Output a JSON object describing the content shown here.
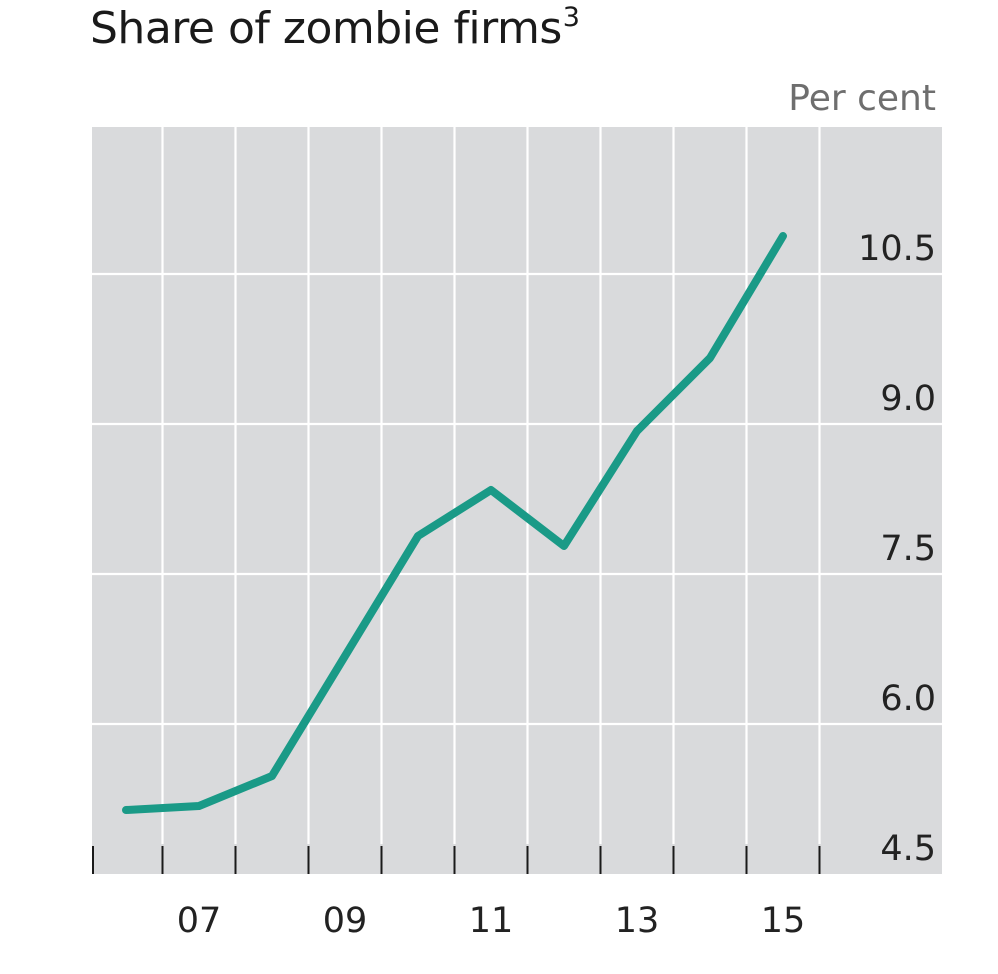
{
  "chart_data": {
    "type": "line",
    "title": "Share of zombie firms",
    "title_footnote": "3",
    "unit_label": "Per cent",
    "xlabel": "",
    "ylabel": "",
    "x_tick_labels": [
      "07",
      "09",
      "11",
      "13",
      "15"
    ],
    "y_tick_labels": [
      "4.5",
      "6.0",
      "7.5",
      "9.0",
      "10.5"
    ],
    "ylim": [
      4.5,
      12.0
    ],
    "xlim": [
      2005.5,
      2017.0
    ],
    "grid": true,
    "background": "#d9dadc",
    "series": [
      {
        "name": "Share of zombie firms",
        "color": "#1a9a87",
        "x": [
          2006.0,
          2007.0,
          2008.0,
          2009.0,
          2010.0,
          2011.0,
          2012.0,
          2013.0,
          2014.0,
          2015.0
        ],
        "values": [
          5.14,
          5.18,
          5.48,
          6.68,
          7.88,
          8.34,
          7.78,
          8.93,
          9.66,
          10.88
        ]
      }
    ]
  }
}
